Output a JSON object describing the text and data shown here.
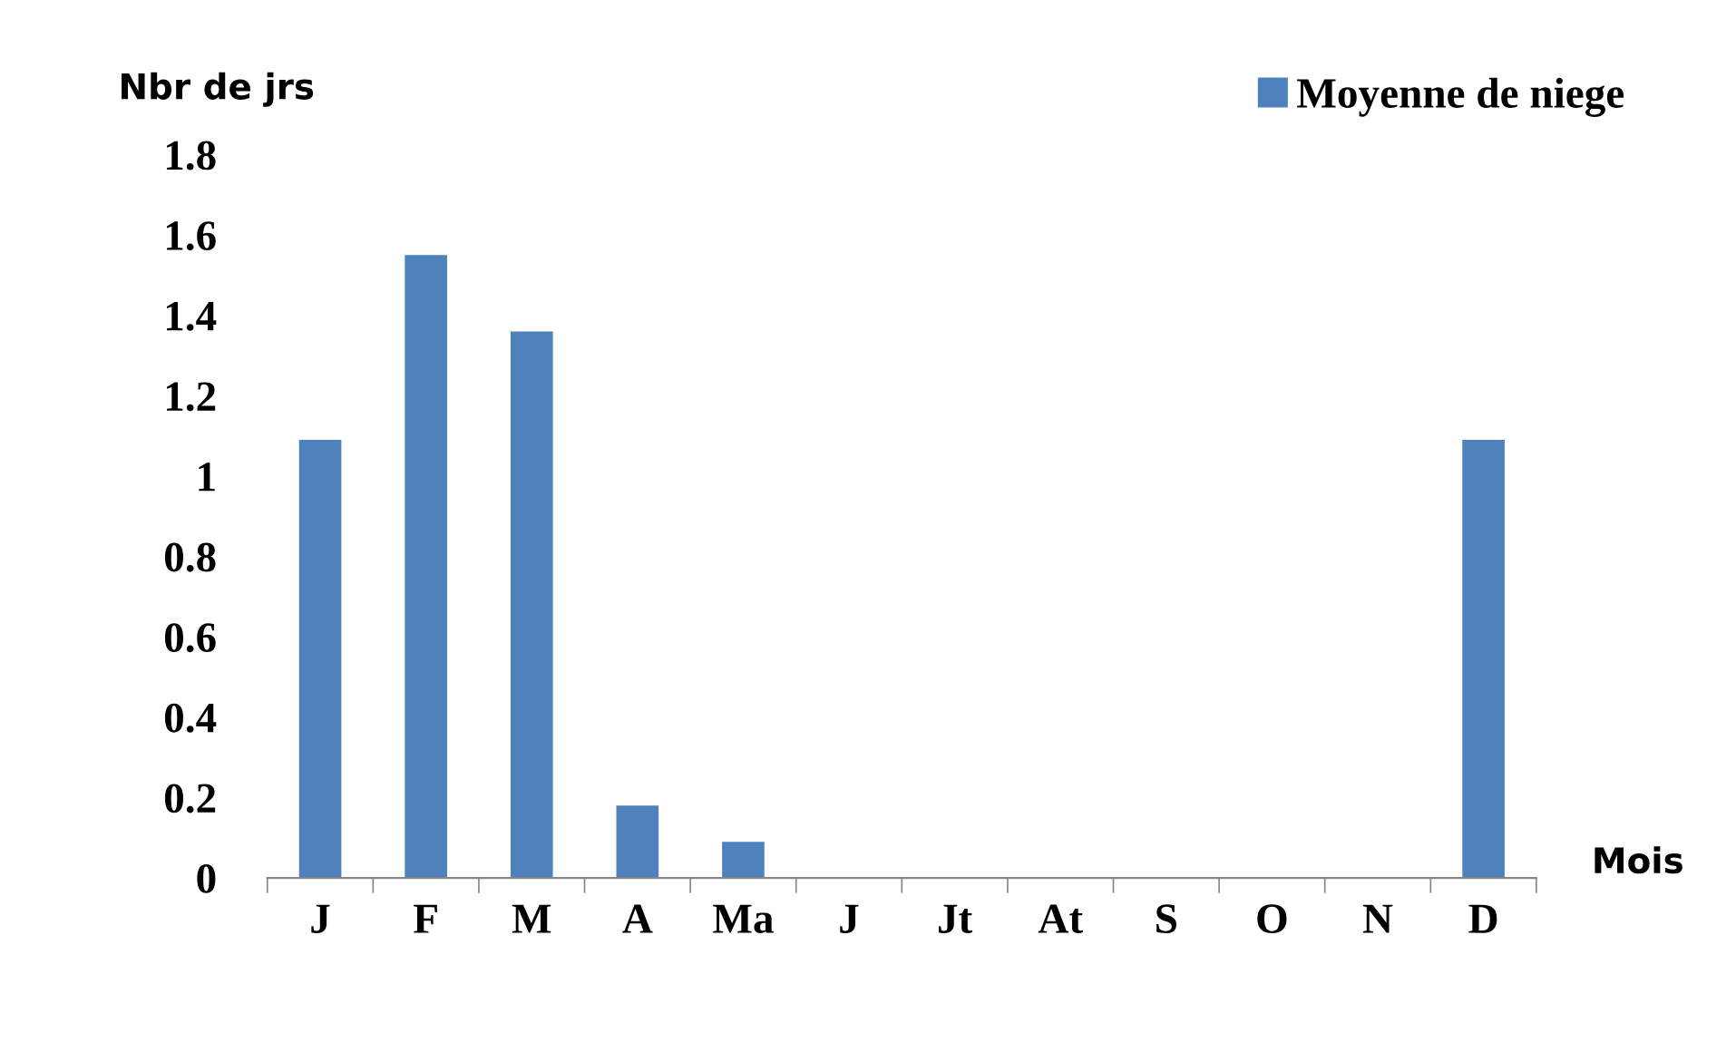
{
  "chart_data": {
    "type": "bar",
    "ylabel": "Nbr de jrs",
    "xlabel": "Mois",
    "categories": [
      "J",
      "F",
      "M",
      "A",
      "Ma",
      "J",
      "Jt",
      "At",
      "S",
      "O",
      "N",
      "D"
    ],
    "series": [
      {
        "name": "Moyenne de niege",
        "color": "#4f81bd",
        "values": [
          1.09,
          1.55,
          1.36,
          0.18,
          0.09,
          0,
          0,
          0,
          0,
          0,
          0,
          1.09
        ]
      }
    ],
    "ylim": [
      0,
      1.8
    ],
    "yticks": [
      0,
      {
        "value": 0.2,
        "label": "0.2"
      },
      {
        "value": 0.4,
        "label": "0.4"
      },
      {
        "value": 0.6,
        "label": "0.6"
      },
      {
        "value": 0.8,
        "label": "0.8"
      },
      1,
      {
        "value": 1.2,
        "label": "1.2"
      },
      {
        "value": 1.4,
        "label": "1.4"
      },
      {
        "value": 1.6,
        "label": "1.6"
      },
      {
        "value": 1.8,
        "label": "1.8"
      }
    ],
    "grid": false,
    "legend": "top right"
  }
}
